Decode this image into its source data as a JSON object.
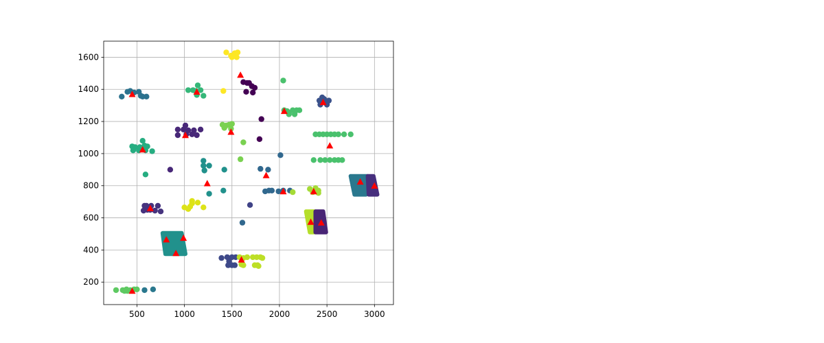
{
  "chart_data": {
    "type": "scatter",
    "title": "",
    "xlabel": "",
    "ylabel": "",
    "xlim": [
      150,
      3200
    ],
    "ylim": [
      60,
      1700
    ],
    "x_ticks": [
      500,
      1000,
      1500,
      2000,
      2500,
      3000
    ],
    "y_ticks": [
      200,
      400,
      600,
      800,
      1000,
      1200,
      1400,
      1600
    ],
    "x_tick_labels": [
      "500",
      "1000",
      "1500",
      "2000",
      "2500",
      "3000"
    ],
    "y_tick_labels": [
      "200",
      "400",
      "600",
      "800",
      "1000",
      "1200",
      "1400",
      "1600"
    ],
    "grid": true,
    "colormap": "viridis",
    "series": [
      {
        "marker": "circle",
        "color_mode": "viridis-by-cluster",
        "clusters": [
          {
            "color": "#2c728e",
            "points": [
              [
                340,
                1355
              ],
              [
                400,
                1385
              ],
              [
                430,
                1390
              ],
              [
                470,
                1380
              ],
              [
                520,
                1385
              ],
              [
                540,
                1360
              ],
              [
                560,
                1355
              ],
              [
                600,
                1355
              ]
            ]
          },
          {
            "color": "#35b779",
            "points": [
              [
                1090,
                1395
              ],
              [
                1120,
                1390
              ],
              [
                1140,
                1425
              ],
              [
                1170,
                1395
              ],
              [
                1130,
                1365
              ],
              [
                1200,
                1360
              ],
              [
                1040,
                1395
              ]
            ]
          },
          {
            "color": "#fde725",
            "points": [
              [
                1440,
                1630
              ],
              [
                1490,
                1610
              ],
              [
                1500,
                1600
              ],
              [
                1530,
                1625
              ],
              [
                1550,
                1600
              ],
              [
                1560,
                1630
              ],
              [
                1410,
                1390
              ]
            ]
          },
          {
            "color": "#440154",
            "points": [
              [
                1620,
                1445
              ],
              [
                1660,
                1440
              ],
              [
                1680,
                1440
              ],
              [
                1710,
                1420
              ],
              [
                1740,
                1410
              ],
              [
                1650,
                1385
              ],
              [
                1720,
                1380
              ],
              [
                1810,
                1215
              ],
              [
                1790,
                1090
              ]
            ]
          },
          {
            "color": "#3b528b",
            "points": [
              [
                2420,
                1330
              ],
              [
                2450,
                1350
              ],
              [
                2470,
                1340
              ],
              [
                2490,
                1325
              ],
              [
                2520,
                1330
              ],
              [
                2500,
                1305
              ],
              [
                2430,
                1305
              ]
            ]
          },
          {
            "color": "#4ac16d",
            "points": [
              [
                2040,
                1455
              ],
              [
                2050,
                1270
              ],
              [
                2080,
                1265
              ],
              [
                2100,
                1255
              ],
              [
                2140,
                1270
              ],
              [
                2180,
                1270
              ],
              [
                2210,
                1270
              ],
              [
                2100,
                1245
              ],
              [
                2160,
                1245
              ],
              [
                2380,
                1120
              ],
              [
                2420,
                1120
              ],
              [
                2460,
                1120
              ],
              [
                2500,
                1120
              ],
              [
                2540,
                1120
              ],
              [
                2580,
                1120
              ],
              [
                2620,
                1120
              ],
              [
                2680,
                1120
              ],
              [
                2750,
                1120
              ],
              [
                2360,
                960
              ],
              [
                2430,
                960
              ],
              [
                2480,
                960
              ],
              [
                2530,
                960
              ],
              [
                2580,
                960
              ],
              [
                2620,
                960
              ],
              [
                2660,
                960
              ]
            ]
          },
          {
            "color": "#482878",
            "points": [
              [
                930,
                1150
              ],
              [
                990,
                1150
              ],
              [
                1010,
                1175
              ],
              [
                1040,
                1145
              ],
              [
                1100,
                1145
              ],
              [
                1170,
                1150
              ],
              [
                930,
                1115
              ],
              [
                1020,
                1120
              ],
              [
                1080,
                1120
              ],
              [
                1130,
                1115
              ],
              [
                850,
                900
              ]
            ]
          },
          {
            "color": "#7ad151",
            "points": [
              [
                1400,
                1180
              ],
              [
                1440,
                1175
              ],
              [
                1470,
                1180
              ],
              [
                1500,
                1185
              ],
              [
                1420,
                1160
              ],
              [
                1490,
                1155
              ],
              [
                1620,
                1070
              ],
              [
                1590,
                965
              ]
            ]
          },
          {
            "color": "#26ad81",
            "points": [
              [
                450,
                1045
              ],
              [
                480,
                1040
              ],
              [
                530,
                1040
              ],
              [
                560,
                1080
              ],
              [
                580,
                1050
              ],
              [
                610,
                1045
              ],
              [
                460,
                1020
              ],
              [
                520,
                1020
              ],
              [
                590,
                1020
              ],
              [
                660,
                1015
              ],
              [
                590,
                870
              ]
            ]
          },
          {
            "color": "#21918c",
            "points": [
              [
                1200,
                955
              ],
              [
                1200,
                925
              ],
              [
                1260,
                925
              ],
              [
                1210,
                895
              ],
              [
                1420,
                900
              ],
              [
                1410,
                770
              ],
              [
                1260,
                750
              ]
            ]
          },
          {
            "color": "#31688e",
            "points": [
              [
                1800,
                905
              ],
              [
                1880,
                900
              ],
              [
                2010,
                990
              ],
              [
                1850,
                765
              ],
              [
                1890,
                770
              ],
              [
                1920,
                770
              ],
              [
                1990,
                765
              ],
              [
                2040,
                770
              ],
              [
                2110,
                770
              ],
              [
                1610,
                570
              ]
            ]
          },
          {
            "color": "#a5db36",
            "points": [
              [
                2320,
                780
              ],
              [
                2380,
                785
              ],
              [
                2410,
                770
              ],
              [
                2350,
                760
              ],
              [
                2410,
                755
              ],
              [
                2140,
                760
              ]
            ]
          },
          {
            "color": "#dde318",
            "points": [
              [
                1000,
                665
              ],
              [
                1060,
                670
              ],
              [
                1080,
                690
              ],
              [
                1080,
                705
              ],
              [
                1140,
                695
              ],
              [
                1200,
                665
              ],
              [
                1040,
                655
              ]
            ]
          },
          {
            "color": "#46337e",
            "points": [
              [
                580,
                675
              ],
              [
                600,
                675
              ],
              [
                650,
                675
              ],
              [
                720,
                675
              ],
              [
                570,
                645
              ],
              [
                610,
                650
              ],
              [
                640,
                650
              ],
              [
                690,
                645
              ],
              [
                750,
                640
              ]
            ]
          },
          {
            "color": "#3e4989",
            "points": [
              [
                1390,
                350
              ],
              [
                1450,
                355
              ],
              [
                1470,
                345
              ],
              [
                1500,
                355
              ],
              [
                1540,
                355
              ],
              [
                1470,
                330
              ],
              [
                1460,
                305
              ],
              [
                1500,
                305
              ],
              [
                1530,
                305
              ]
            ]
          },
          {
            "color": "#bddf26",
            "points": [
              [
                1580,
                355
              ],
              [
                1620,
                350
              ],
              [
                1660,
                355
              ],
              [
                1720,
                355
              ],
              [
                1760,
                355
              ],
              [
                1800,
                355
              ],
              [
                1820,
                350
              ],
              [
                1600,
                310
              ],
              [
                1620,
                305
              ],
              [
                1740,
                305
              ],
              [
                1770,
                305
              ],
              [
                1780,
                300
              ]
            ]
          },
          {
            "color": "#5ec962",
            "points": [
              [
                280,
                150
              ],
              [
                350,
                150
              ],
              [
                370,
                145
              ],
              [
                390,
                155
              ],
              [
                400,
                145
              ],
              [
                430,
                150
              ],
              [
                470,
                155
              ],
              [
                500,
                155
              ]
            ]
          },
          {
            "color": "#2a788e",
            "points": [
              [
                580,
                150
              ],
              [
                670,
                155
              ]
            ]
          },
          {
            "color": "#404387",
            "points": [
              [
                1690,
                680
              ]
            ]
          }
        ],
        "dense_clusters": [
          {
            "color": "#21918c",
            "corners": [
              [
                770,
                505
              ],
              [
                970,
                505
              ],
              [
                1010,
                375
              ],
              [
                800,
                375
              ]
            ]
          },
          {
            "color": "#b5de2b",
            "corners": [
              [
                2280,
                640
              ],
              [
                2380,
                640
              ],
              [
                2380,
                510
              ],
              [
                2320,
                510
              ]
            ]
          },
          {
            "color": "#482475",
            "corners": [
              [
                2380,
                640
              ],
              [
                2460,
                640
              ],
              [
                2490,
                510
              ],
              [
                2380,
                510
              ]
            ]
          },
          {
            "color": "#2a788e",
            "corners": [
              [
                2750,
                860
              ],
              [
                2930,
                860
              ],
              [
                2910,
                745
              ],
              [
                2790,
                745
              ]
            ]
          },
          {
            "color": "#472f7d",
            "corners": [
              [
                2930,
                860
              ],
              [
                2990,
                860
              ],
              [
                3030,
                745
              ],
              [
                2940,
                745
              ]
            ]
          }
        ]
      },
      {
        "marker": "triangle",
        "color": "#ff0000",
        "points": [
          [
            450,
            1370
          ],
          [
            1130,
            1385
          ],
          [
            1590,
            1490
          ],
          [
            2050,
            1265
          ],
          [
            2460,
            1320
          ],
          [
            560,
            1025
          ],
          [
            1010,
            1115
          ],
          [
            1490,
            1135
          ],
          [
            2530,
            1050
          ],
          [
            1240,
            815
          ],
          [
            1860,
            865
          ],
          [
            2040,
            765
          ],
          [
            2360,
            765
          ],
          [
            2850,
            825
          ],
          [
            3000,
            800
          ],
          [
            640,
            660
          ],
          [
            2330,
            575
          ],
          [
            2440,
            570
          ],
          [
            810,
            465
          ],
          [
            990,
            475
          ],
          [
            910,
            380
          ],
          [
            1600,
            340
          ],
          [
            450,
            145
          ]
        ]
      }
    ]
  }
}
